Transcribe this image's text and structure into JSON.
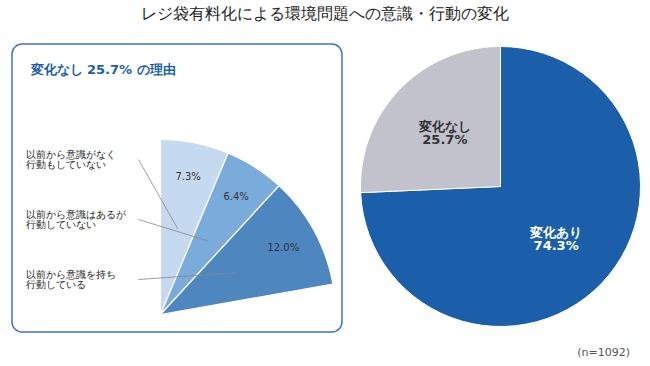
{
  "chart_data": [
    {
      "type": "pie",
      "title": "レジ袋有料化による環境問題への意識・行動の変化",
      "caption": "(n=1092)",
      "categories": [
        "変化あり",
        "変化なし"
      ],
      "values": [
        74.3,
        25.7
      ],
      "value_labels": [
        "74.3%",
        "25.7%"
      ],
      "colors": [
        "#1b5faa",
        "#c2c2cc"
      ],
      "data_labels": true
    },
    {
      "type": "pie",
      "title": "変化なし 25.7% の理由",
      "categories": [
        "以前から意識がなく\n行動もしていない",
        "以前から意識はあるが\n行動していない",
        "以前から意識を持ち\n行動している"
      ],
      "values": [
        7.3,
        6.4,
        12.0
      ],
      "value_labels": [
        "7.3%",
        "6.4%",
        "12.0%"
      ],
      "colors": [
        "#c5d9f1",
        "#7aabdb",
        "#4e86c0"
      ],
      "data_labels": true
    }
  ]
}
